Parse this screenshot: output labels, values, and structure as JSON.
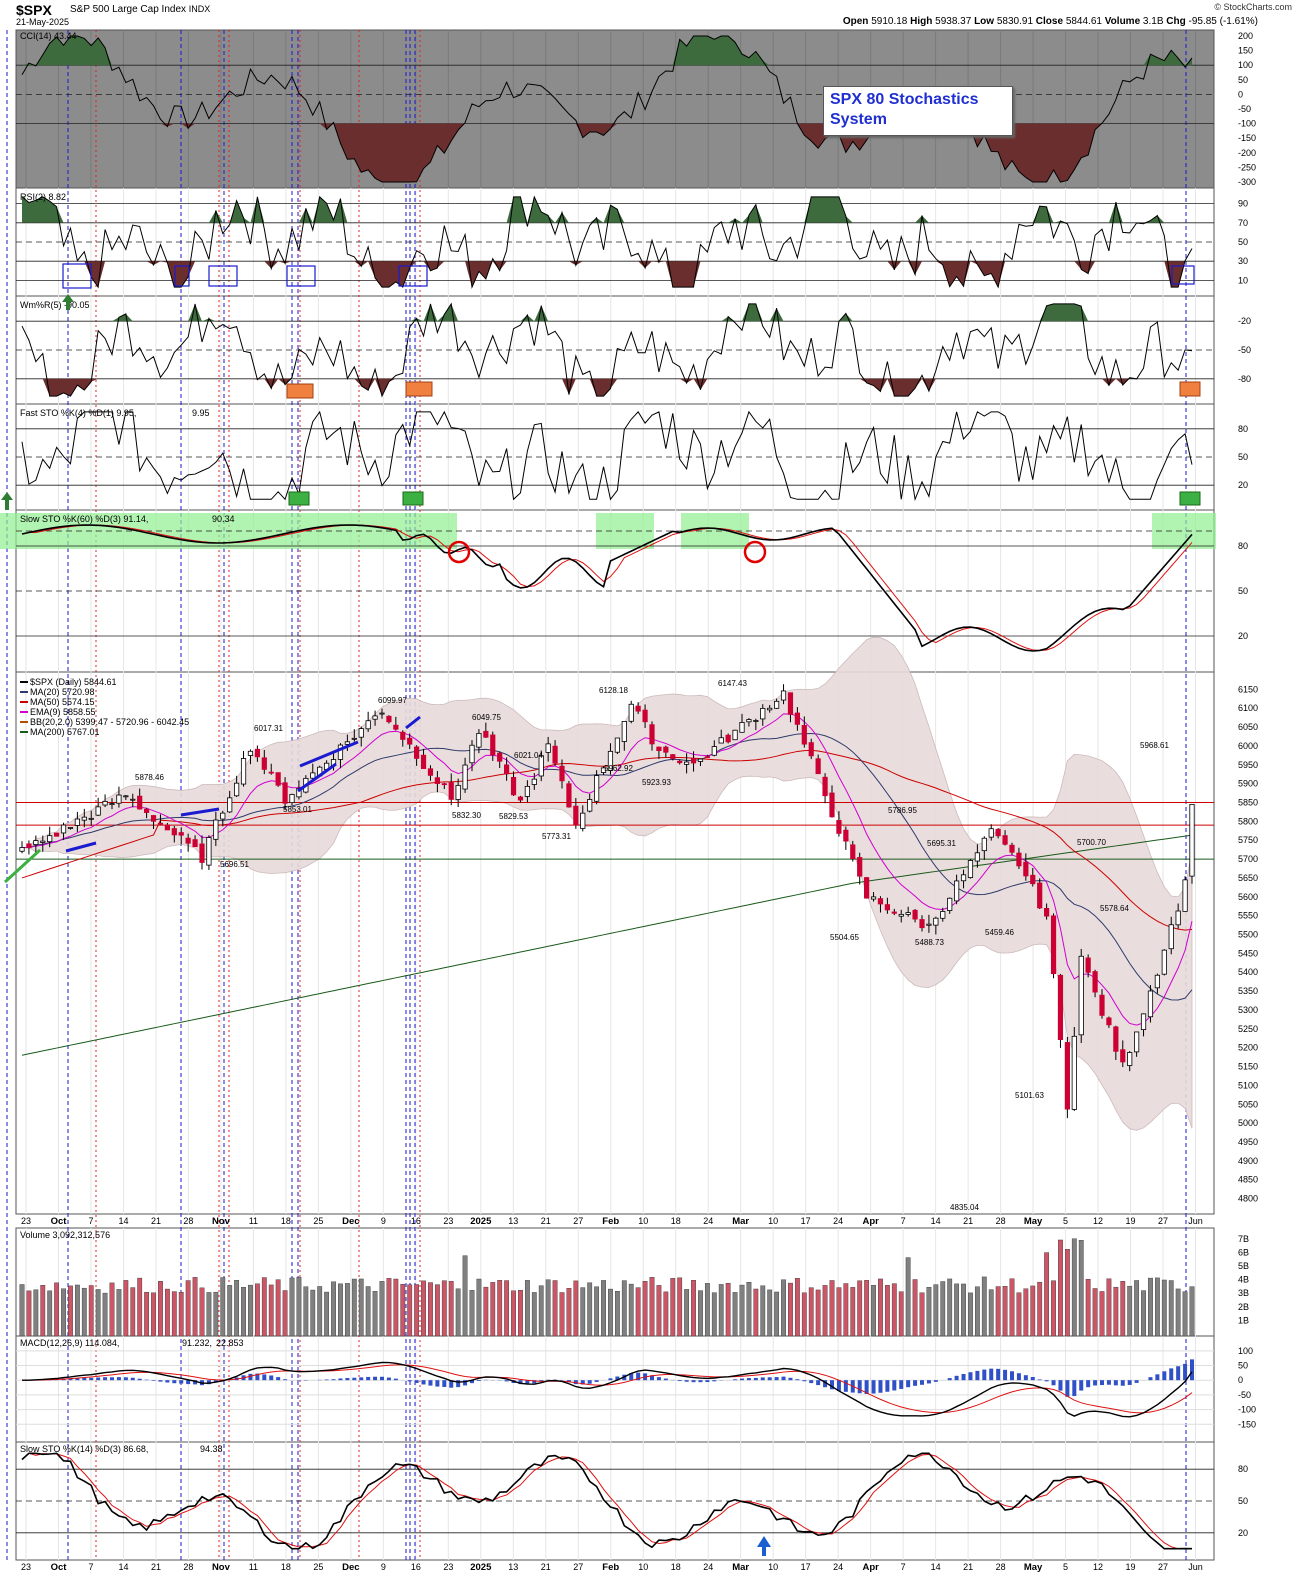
{
  "header": {
    "symbol": "$SPX",
    "name": "S&P 500 Large Cap Index",
    "exchange": "INDX",
    "date": "21-May-2025",
    "brand": "© StockCharts.com",
    "open_label": "Open",
    "open": "5910.18",
    "high_label": "High",
    "high": "5938.37",
    "low_label": "Low",
    "low": "5830.91",
    "close_label": "Close",
    "close": "5844.61",
    "volume_label": "Volume",
    "volume": "3.1B",
    "chg_label": "Chg",
    "chg": "-95.85 (-1.61%)"
  },
  "annotation_box": {
    "line1": "SPX 80 Stochastics",
    "line2": "System"
  },
  "panels": {
    "cci": {
      "label": "CCI(14) 43.44",
      "ticks": [
        "200",
        "150",
        "100",
        "50",
        "0",
        "-50",
        "-100",
        "-150",
        "-200",
        "-250",
        "-300"
      ]
    },
    "rsi": {
      "label": "RSI(2) 8.82",
      "ticks": [
        "90",
        "70",
        "50",
        "30",
        "10"
      ]
    },
    "wm": {
      "label": "Wm%R(5) -90.05",
      "ticks": [
        "-20",
        "-50",
        "-80"
      ]
    },
    "fast": {
      "label": "Fast STO %K(4) %D(1) 9.95,",
      "label_red": "9.95",
      "ticks": [
        "80",
        "50",
        "20"
      ]
    },
    "slow60": {
      "label": "Slow STO %K(60) %D(3) 91.14,",
      "label_red": "90.34",
      "ticks": [
        "80",
        "50",
        "20"
      ]
    },
    "price": {
      "legend": [
        {
          "text": "$SPX (Daily) 5844.61",
          "color": "#000000"
        },
        {
          "text": "MA(20) 5720.98",
          "color": "#2d3a6b"
        },
        {
          "text": "MA(50) 5574.15",
          "color": "#cc0000"
        },
        {
          "text": "EMA(9) 5858.55",
          "color": "#d000d0"
        },
        {
          "text": "BB(20,2.0) 5399.47 - 5720.96 - 6042.45",
          "color": "#b05000"
        },
        {
          "text": "MA(200) 5767.01",
          "color": "#1a5a1a"
        }
      ],
      "ticks": [
        "6150",
        "6100",
        "6050",
        "6000",
        "5950",
        "5900",
        "5850",
        "5800",
        "5750",
        "5700",
        "5650",
        "5600",
        "5550",
        "5500",
        "5450",
        "5400",
        "5350",
        "5300",
        "5250",
        "5200",
        "5150",
        "5100",
        "5050",
        "5000",
        "4950",
        "4900",
        "4850",
        "4800"
      ]
    },
    "volume": {
      "label": "Volume 3,092,312,576",
      "ticks": [
        "7B",
        "6B",
        "5B",
        "4B",
        "3B",
        "2B",
        "1B"
      ]
    },
    "macd": {
      "label": "MACD(12,26,9) 114.084,",
      "label_red": "91.232,",
      "label_blue": "22.853",
      "ticks": [
        "100",
        "50",
        "0",
        "-50",
        "-100",
        "-150"
      ]
    },
    "slow14": {
      "label": "Slow STO %K(14) %D(3) 86.68,",
      "label_red": "94.38",
      "ticks": [
        "80",
        "50",
        "20"
      ]
    }
  },
  "x_axis": [
    "23",
    "Oct",
    "7",
    "14",
    "21",
    "28",
    "Nov",
    "11",
    "18",
    "25",
    "Dec",
    "9",
    "16",
    "23",
    "2025",
    "13",
    "21",
    "27",
    "Feb",
    "10",
    "18",
    "24",
    "Mar",
    "10",
    "17",
    "24",
    "Apr",
    "7",
    "14",
    "21",
    "28",
    "May",
    "5",
    "12",
    "19",
    "27",
    "Jun"
  ],
  "x_axis_bold": [
    "Oct",
    "Nov",
    "Dec",
    "2025",
    "Feb",
    "Mar",
    "Apr",
    "May"
  ],
  "price_annotations": [
    "5878.46",
    "6017.31",
    "6099.97",
    "6049.75",
    "6021.04",
    "6128.18",
    "6147.43",
    "5853.01",
    "5832.30",
    "5829.53",
    "5773.31",
    "5962.92",
    "5923.93",
    "5696.51",
    "5786.95",
    "5695.31",
    "5504.65",
    "5488.73",
    "5459.46",
    "5700.70",
    "5578.64",
    "5968.61",
    "5101.63",
    "4835.04"
  ],
  "colors": {
    "up": "#ffffff",
    "down": "#cc0033",
    "cci_bg": "#8c8c8c",
    "pos_fill": "#3e6b3e",
    "neg_fill": "#6b2e2e",
    "vline_blue": "#1a1ad0",
    "vline_red": "#e02020",
    "stoch_green": "#90ee90"
  },
  "chart_data": {
    "type": "line",
    "title": "$SPX S&P 500 Large Cap Index (Daily)",
    "period": "Sep 2024 - May 21 2025",
    "price_pivots": [
      {
        "date": "2024-09-23",
        "close": 5720
      },
      {
        "date": "2024-10-18",
        "high": 5878.46
      },
      {
        "date": "2024-10-31",
        "low": 5696.51
      },
      {
        "date": "2024-11-11",
        "high": 6017.31
      },
      {
        "date": "2024-11-15",
        "low": 5853.01
      },
      {
        "date": "2024-12-06",
        "high": 6099.97
      },
      {
        "date": "2024-12-20",
        "low": 5832.3
      },
      {
        "date": "2024-12-26",
        "high": 6049.75
      },
      {
        "date": "2025-01-02",
        "low": 5829.53
      },
      {
        "date": "2025-01-06",
        "high": 6021.04
      },
      {
        "date": "2025-01-13",
        "low": 5773.31
      },
      {
        "date": "2025-01-24",
        "high": 6128.18
      },
      {
        "date": "2025-01-27",
        "low": 5962.92
      },
      {
        "date": "2025-02-03",
        "low": 5923.93
      },
      {
        "date": "2025-02-19",
        "high": 6147.43
      },
      {
        "date": "2025-03-13",
        "low": 5504.65
      },
      {
        "date": "2025-03-25",
        "high": 5786.95
      },
      {
        "date": "2025-03-28",
        "low": 5695.31
      },
      {
        "date": "2025-04-04",
        "low": 5488.73
      },
      {
        "date": "2025-04-07",
        "low": 4835.04
      },
      {
        "date": "2025-04-09",
        "high": 5459.46
      },
      {
        "date": "2025-04-21",
        "low": 5101.63
      },
      {
        "date": "2025-05-02",
        "high": 5700.7
      },
      {
        "date": "2025-05-07",
        "low": 5578.64
      },
      {
        "date": "2025-05-19",
        "high": 5968.61
      },
      {
        "date": "2025-05-21",
        "close": 5844.61
      }
    ],
    "indicators_last": {
      "CCI14": 43.44,
      "RSI2": 8.82,
      "WmR5": -90.05,
      "FastSTO_K4": 9.95,
      "SlowSTO60_K": 91.14,
      "SlowSTO60_D": 90.34,
      "MACD": 114.084,
      "MACD_signal": 91.232,
      "MACD_hist": 22.853,
      "SlowSTO14_K": 86.68,
      "SlowSTO14_D": 94.38,
      "MA20": 5720.98,
      "MA50": 5574.15,
      "EMA9": 5858.55,
      "MA200": 5767.01,
      "BB_lower": 5399.47,
      "BB_mid": 5720.96,
      "BB_upper": 6042.45
    },
    "ylim_price": [
      4800,
      6150
    ],
    "grid": true
  }
}
